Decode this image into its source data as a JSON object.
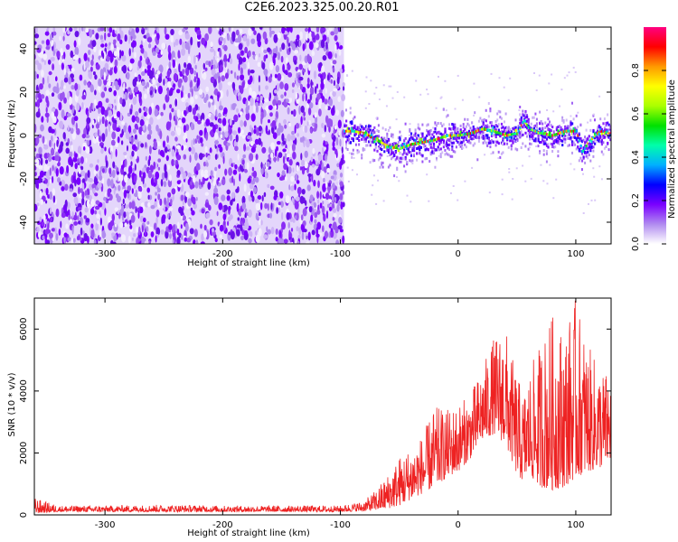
{
  "figure": {
    "title": "C2E6.2023.325.00.20.R01"
  },
  "chart_data": [
    {
      "type": "heatmap",
      "xlabel": "Height of straight line (km)",
      "ylabel": "Frequency (Hz)",
      "xlim": [
        -360,
        130
      ],
      "ylim": [
        -50,
        50
      ],
      "xticks": [
        -300,
        -200,
        -100,
        0,
        100
      ],
      "yticks": [
        -40,
        -20,
        0,
        20,
        40
      ],
      "colorbar": {
        "label": "Normalized spectral amplitude",
        "range": [
          0,
          1
        ],
        "ticks": [
          0.0,
          0.2,
          0.4,
          0.6,
          0.8
        ],
        "colormap": [
          "#ffffff",
          "#b18bf0",
          "#7a00ff",
          "#0000ff",
          "#00b0ff",
          "#00ffaa",
          "#00e000",
          "#aaff00",
          "#ffff00",
          "#ff9900",
          "#ff0000",
          "#ff0080"
        ]
      },
      "noise_region_x": [
        -360,
        -97
      ],
      "signal_track": {
        "x": [
          -100,
          -90,
          -80,
          -70,
          -60,
          -50,
          -40,
          -30,
          -20,
          -10,
          0,
          10,
          20,
          30,
          40,
          50,
          55,
          60,
          70,
          80,
          90,
          100,
          105,
          110,
          120,
          130
        ],
        "freq": [
          2,
          2,
          1,
          -2,
          -5,
          -6,
          -4,
          -3,
          -2,
          0,
          0,
          1,
          3,
          2,
          0,
          1,
          7,
          3,
          1,
          0,
          2,
          2,
          -8,
          -3,
          2,
          1
        ]
      },
      "grid": false
    },
    {
      "type": "line",
      "xlabel": "Height of straight line (km)",
      "ylabel": "SNR (10 * v/v)",
      "xlim": [
        -360,
        130
      ],
      "ylim": [
        0,
        7000
      ],
      "xticks": [
        -300,
        -200,
        -100,
        0,
        100
      ],
      "yticks": [
        0,
        2000,
        4000,
        6000
      ],
      "series": [
        {
          "color": "#ee2222",
          "x": [
            -360,
            -340,
            -300,
            -250,
            -200,
            -150,
            -100,
            -80,
            -70,
            -60,
            -50,
            -40,
            -30,
            -20,
            -10,
            0,
            10,
            20,
            30,
            40,
            45,
            50,
            55,
            60,
            70,
            80,
            90,
            100,
            110,
            120,
            130
          ],
          "y_low": [
            50,
            100,
            100,
            100,
            100,
            100,
            100,
            120,
            150,
            200,
            300,
            500,
            700,
            900,
            1200,
            1400,
            1800,
            2400,
            2600,
            2300,
            1800,
            1300,
            1100,
            1300,
            900,
            800,
            900,
            1200,
            1400,
            1500,
            1800
          ],
          "y_high": [
            550,
            300,
            300,
            330,
            300,
            300,
            300,
            450,
            800,
            1300,
            1900,
            2200,
            2600,
            3500,
            3400,
            3600,
            3900,
            4700,
            5700,
            6100,
            5200,
            4600,
            3900,
            4600,
            5600,
            6500,
            6000,
            7000,
            5500,
            4800,
            4500
          ]
        }
      ],
      "grid": false
    }
  ]
}
